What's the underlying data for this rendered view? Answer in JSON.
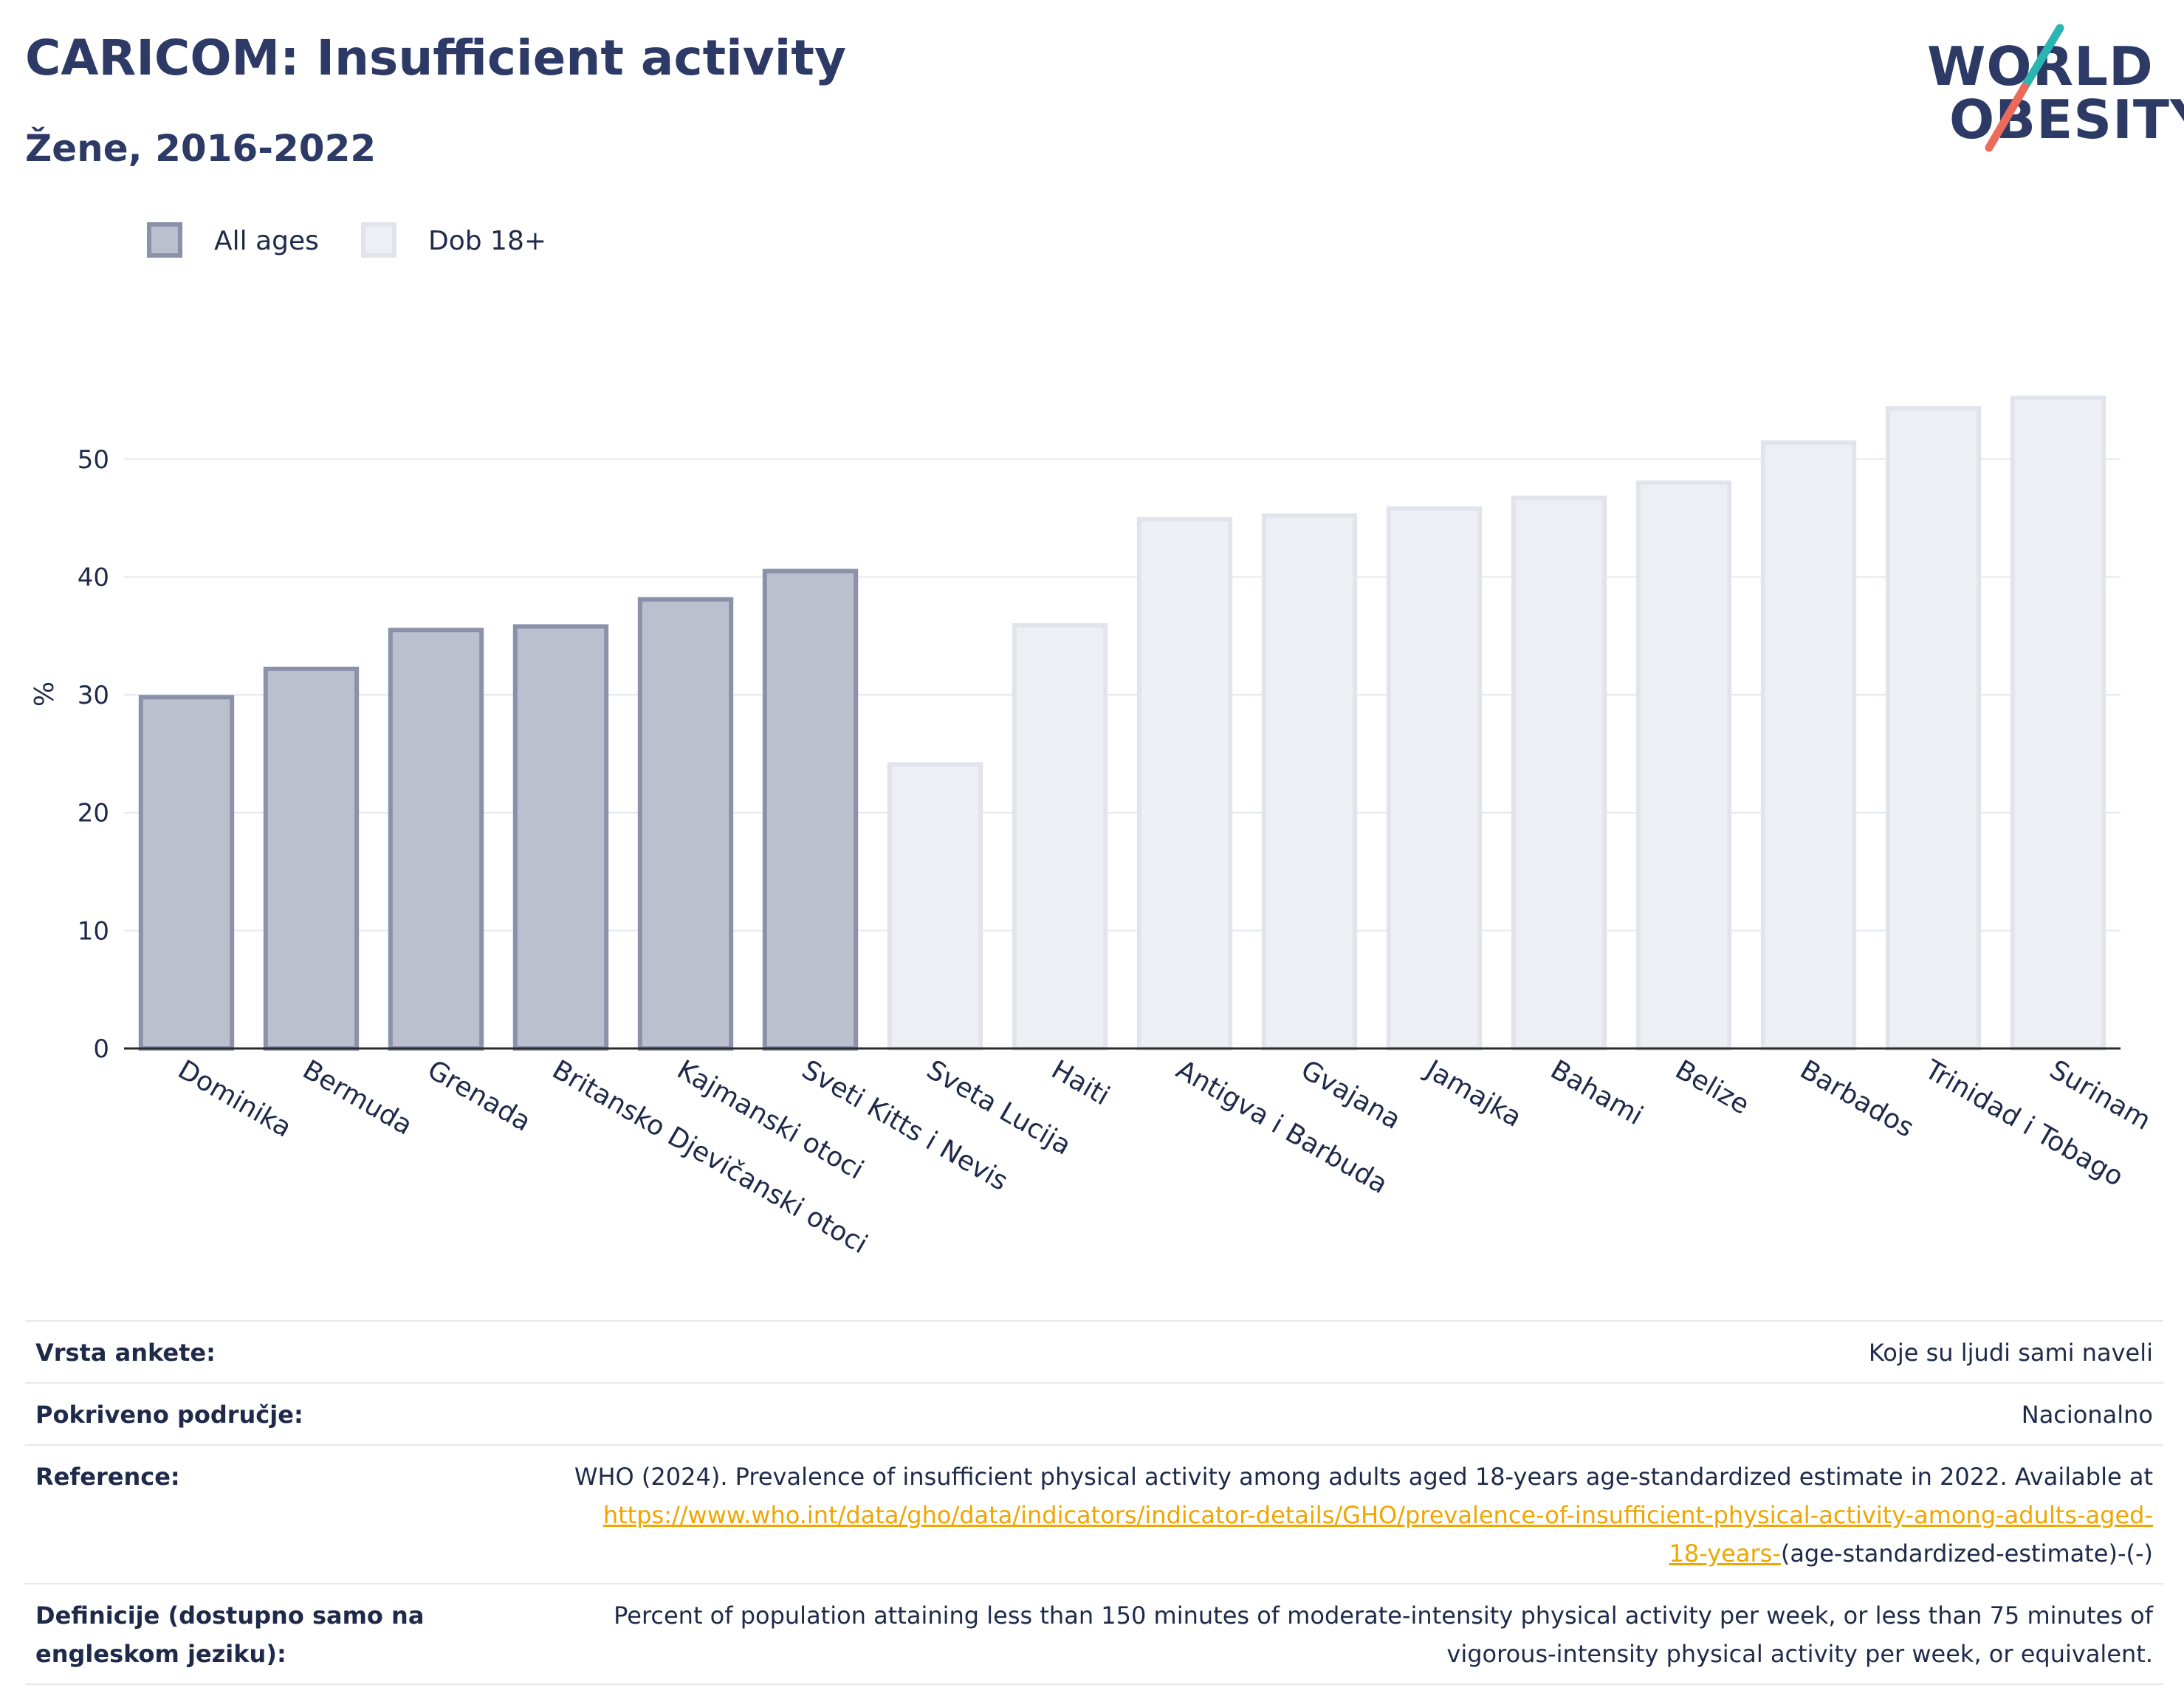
{
  "header": {
    "title": "CARICOM: Insufficient activity",
    "subtitle": "Žene, 2016-2022",
    "logo_line1": "WORLD",
    "logo_line2": "OBESITY"
  },
  "colors": {
    "all_ages_fill": "#bcc0ce",
    "all_ages_stroke": "#8a91a9",
    "adult_fill": "#eeeff4",
    "adult_stroke": "#e2e4ec",
    "logo_teal": "#2bb5b0",
    "logo_coral": "#ea6b5c",
    "link": "#f0a500"
  },
  "chart_data": {
    "type": "bar",
    "title": "CARICOM: Insufficient activity",
    "subtitle": "Žene, 2016-2022",
    "ylabel": "%",
    "ylim": [
      0,
      57
    ],
    "yticks": [
      0,
      10,
      20,
      30,
      40,
      50
    ],
    "grid": true,
    "legend": [
      {
        "label": "All ages",
        "key": "all_ages"
      },
      {
        "label": "Dob 18+",
        "key": "adult"
      }
    ],
    "legend_position": "top-left",
    "categories": [
      "Dominika",
      "Bermuda",
      "Grenada",
      "Britansko Djevičanski otoci",
      "Kajmanski otoci",
      "Sveti Kitts i Nevis",
      "Sveta Lucija",
      "Haiti",
      "Antigva i Barbuda",
      "Gvajana",
      "Jamajka",
      "Bahami",
      "Belize",
      "Barbados",
      "Trinidad i Tobago",
      "Surinam"
    ],
    "values": [
      29.8,
      32.2,
      35.5,
      35.8,
      38.1,
      40.5,
      24.1,
      35.9,
      44.9,
      45.2,
      45.8,
      46.7,
      48.0,
      51.4,
      54.3,
      55.2
    ],
    "groups": [
      "all_ages",
      "all_ages",
      "all_ages",
      "all_ages",
      "all_ages",
      "all_ages",
      "adult",
      "adult",
      "adult",
      "adult",
      "adult",
      "adult",
      "adult",
      "adult",
      "adult",
      "adult"
    ]
  },
  "info": [
    {
      "label": "Vrsta ankete:",
      "value": "Koje su ljudi sami naveli"
    },
    {
      "label": "Pokriveno područje:",
      "value": "Nacionalno"
    },
    {
      "label": "Reference:",
      "value": "WHO (2024). Prevalence of insufficient physical activity among adults aged 18-years age-standardized estimate in 2022. Available at",
      "link": "https://www.who.int/data/gho/data/indicators/indicator-details/GHO/prevalence-of-insufficient-physical-activity-among-adults-aged-18-years-",
      "suffix": "(age-standardized-estimate)-(-)"
    },
    {
      "label": "Definicije (dostupno samo na engleskom jeziku):",
      "value": "Percent of population attaining less than 150 minutes of moderate-intensity physical activity per week, or less than 75 minutes of vigorous-intensity physical activity per week, or equivalent."
    }
  ]
}
